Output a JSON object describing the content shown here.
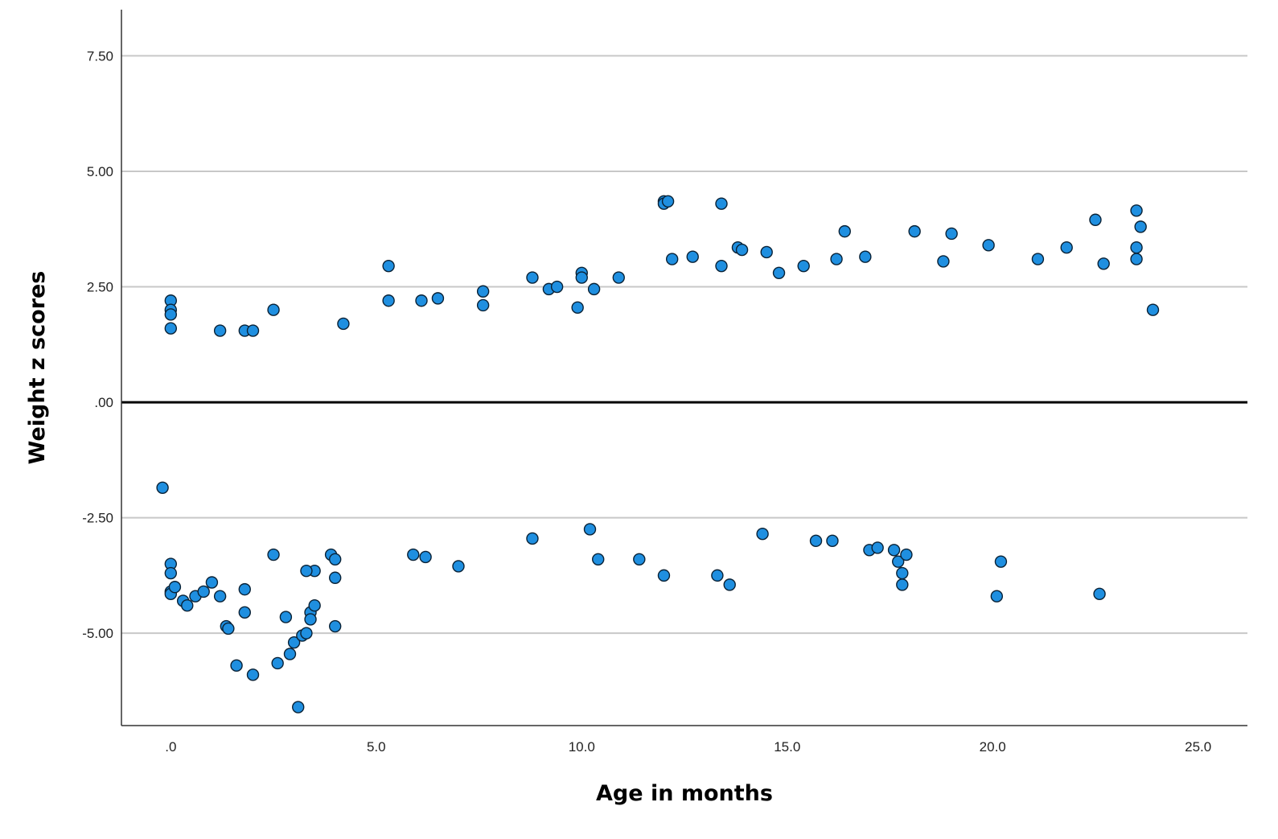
{
  "chart_data": {
    "type": "scatter",
    "title": "",
    "xlabel": "Age in months",
    "ylabel": "Weight z scores",
    "xlim": [
      -1.2,
      26.2
    ],
    "ylim": [
      -7.0,
      8.5
    ],
    "x_ticks": [
      0,
      5,
      10,
      15,
      20,
      25
    ],
    "x_tick_labels": [
      ".0",
      "5.0",
      "10.0",
      "15.0",
      "20.0",
      "25.0"
    ],
    "y_ticks": [
      7.5,
      5,
      2.5,
      0,
      -2.5,
      -5
    ],
    "y_tick_labels": [
      "7.50",
      "5.00",
      "2.50",
      ".00",
      "-2.50",
      "-5.00"
    ],
    "grid": true,
    "reference_line_y": 0,
    "marker_color": "#1f8fe0",
    "marker_edge_color": "#0a2236",
    "series": [
      {
        "points": [
          [
            -0.2,
            -1.85
          ],
          [
            0.0,
            2.2
          ],
          [
            0.0,
            2.0
          ],
          [
            0.0,
            1.9
          ],
          [
            0.0,
            1.6
          ],
          [
            0.0,
            -3.5
          ],
          [
            0.0,
            -3.7
          ],
          [
            0.0,
            -4.1
          ],
          [
            0.0,
            -4.15
          ],
          [
            0.1,
            -4.0
          ],
          [
            0.3,
            -4.3
          ],
          [
            0.4,
            -4.4
          ],
          [
            0.6,
            -4.2
          ],
          [
            0.8,
            -4.1
          ],
          [
            1.0,
            -3.9
          ],
          [
            1.2,
            -4.2
          ],
          [
            1.35,
            -4.85
          ],
          [
            1.4,
            -4.9
          ],
          [
            1.6,
            -5.7
          ],
          [
            1.8,
            -4.55
          ],
          [
            1.8,
            -4.05
          ],
          [
            2.0,
            -5.9
          ],
          [
            1.8,
            1.55
          ],
          [
            2.0,
            1.55
          ],
          [
            1.2,
            1.55
          ],
          [
            2.5,
            2.0
          ],
          [
            2.5,
            -3.3
          ],
          [
            2.6,
            -5.65
          ],
          [
            2.8,
            -4.65
          ],
          [
            2.9,
            -5.45
          ],
          [
            3.0,
            -5.2
          ],
          [
            3.1,
            -6.6
          ],
          [
            3.2,
            -5.05
          ],
          [
            3.3,
            -5.0
          ],
          [
            3.4,
            -4.55
          ],
          [
            3.5,
            -4.4
          ],
          [
            3.4,
            -4.7
          ],
          [
            3.5,
            -3.65
          ],
          [
            3.3,
            -3.65
          ],
          [
            3.9,
            -3.3
          ],
          [
            4.0,
            -4.85
          ],
          [
            4.0,
            -3.8
          ],
          [
            4.0,
            -3.4
          ],
          [
            4.2,
            1.7
          ],
          [
            5.3,
            2.95
          ],
          [
            5.3,
            2.2
          ],
          [
            6.1,
            2.2
          ],
          [
            6.5,
            2.25
          ],
          [
            7.0,
            -3.55
          ],
          [
            7.6,
            2.4
          ],
          [
            7.6,
            2.1
          ],
          [
            6.2,
            -3.35
          ],
          [
            5.9,
            -3.3
          ],
          [
            8.8,
            2.7
          ],
          [
            9.2,
            2.45
          ],
          [
            9.4,
            2.5
          ],
          [
            9.9,
            2.05
          ],
          [
            10.0,
            2.8
          ],
          [
            10.0,
            2.7
          ],
          [
            10.3,
            2.45
          ],
          [
            10.9,
            2.7
          ],
          [
            10.2,
            -2.75
          ],
          [
            10.4,
            -3.4
          ],
          [
            8.8,
            -2.95
          ],
          [
            11.4,
            -3.4
          ],
          [
            12.0,
            -3.75
          ],
          [
            12.0,
            4.35
          ],
          [
            12.0,
            4.3
          ],
          [
            12.1,
            4.35
          ],
          [
            12.2,
            3.1
          ],
          [
            12.7,
            3.15
          ],
          [
            13.4,
            4.3
          ],
          [
            13.4,
            2.95
          ],
          [
            13.3,
            -3.75
          ],
          [
            13.6,
            -3.95
          ],
          [
            13.8,
            3.35
          ],
          [
            13.9,
            3.3
          ],
          [
            14.5,
            3.25
          ],
          [
            14.8,
            2.8
          ],
          [
            15.4,
            2.95
          ],
          [
            16.2,
            3.1
          ],
          [
            16.4,
            3.7
          ],
          [
            16.9,
            3.15
          ],
          [
            14.4,
            -2.85
          ],
          [
            15.7,
            -3.0
          ],
          [
            16.1,
            -3.0
          ],
          [
            17.0,
            -3.2
          ],
          [
            17.2,
            -3.15
          ],
          [
            17.6,
            -3.2
          ],
          [
            17.7,
            -3.45
          ],
          [
            17.8,
            -3.95
          ],
          [
            17.8,
            -3.7
          ],
          [
            17.9,
            -3.3
          ],
          [
            18.1,
            3.7
          ],
          [
            18.8,
            3.05
          ],
          [
            19.0,
            3.65
          ],
          [
            19.9,
            3.4
          ],
          [
            20.2,
            -3.45
          ],
          [
            20.1,
            -4.2
          ],
          [
            22.5,
            3.95
          ],
          [
            22.6,
            -4.15
          ],
          [
            23.5,
            4.15
          ],
          [
            23.6,
            3.8
          ],
          [
            23.5,
            3.35
          ],
          [
            23.5,
            3.1
          ],
          [
            22.7,
            3.0
          ],
          [
            21.8,
            3.35
          ],
          [
            21.1,
            3.1
          ],
          [
            23.9,
            2.0
          ]
        ]
      }
    ]
  }
}
